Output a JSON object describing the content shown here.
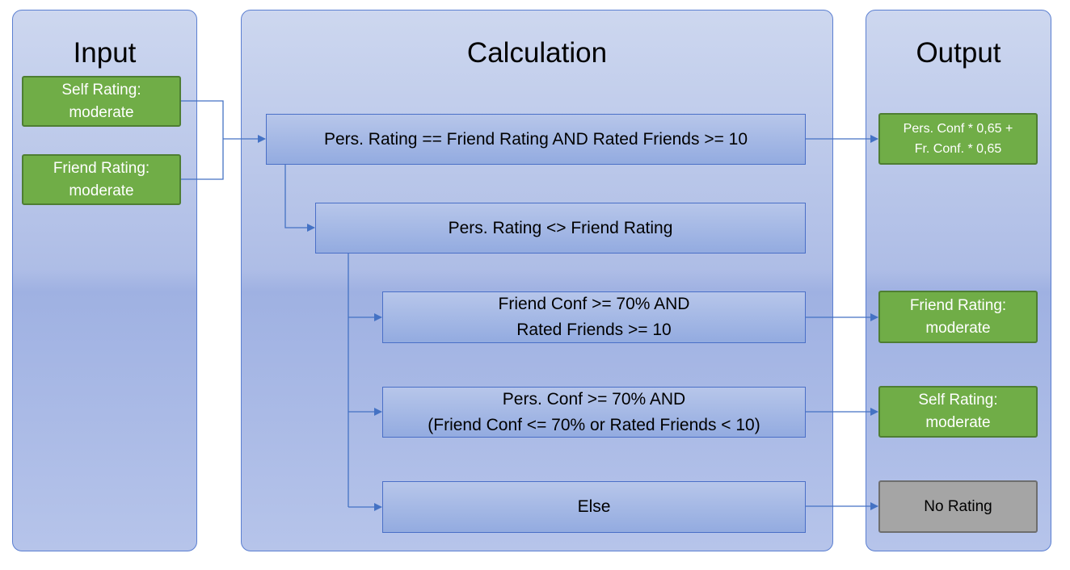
{
  "panels": {
    "input": "Input",
    "calculation": "Calculation",
    "output": "Output"
  },
  "inputs": {
    "self_rating": "Self Rating:\nmoderate",
    "friend_rating": "Friend Rating:\nmoderate"
  },
  "conditions": {
    "c1": "Pers. Rating == Friend Rating AND Rated Friends >= 10",
    "c2": "Pers. Rating <> Friend Rating",
    "c3": "Friend Conf >= 70% AND\nRated Friends >= 10",
    "c4": "Pers. Conf >= 70% AND\n(Friend Conf <= 70% or Rated Friends < 10)",
    "c5": "Else"
  },
  "outputs": {
    "o1": "Pers. Conf * 0,65 +\nFr. Conf. * 0,65",
    "o2": "Friend Rating:\nmoderate",
    "o3": "Self Rating:\nmoderate",
    "o4": "No Rating"
  },
  "colors": {
    "panel_border": "#5b7fd1",
    "connector": "#4472c4",
    "green_fill": "#70ad47",
    "green_border": "#4e7e32",
    "gray_fill": "#a5a5a5"
  }
}
